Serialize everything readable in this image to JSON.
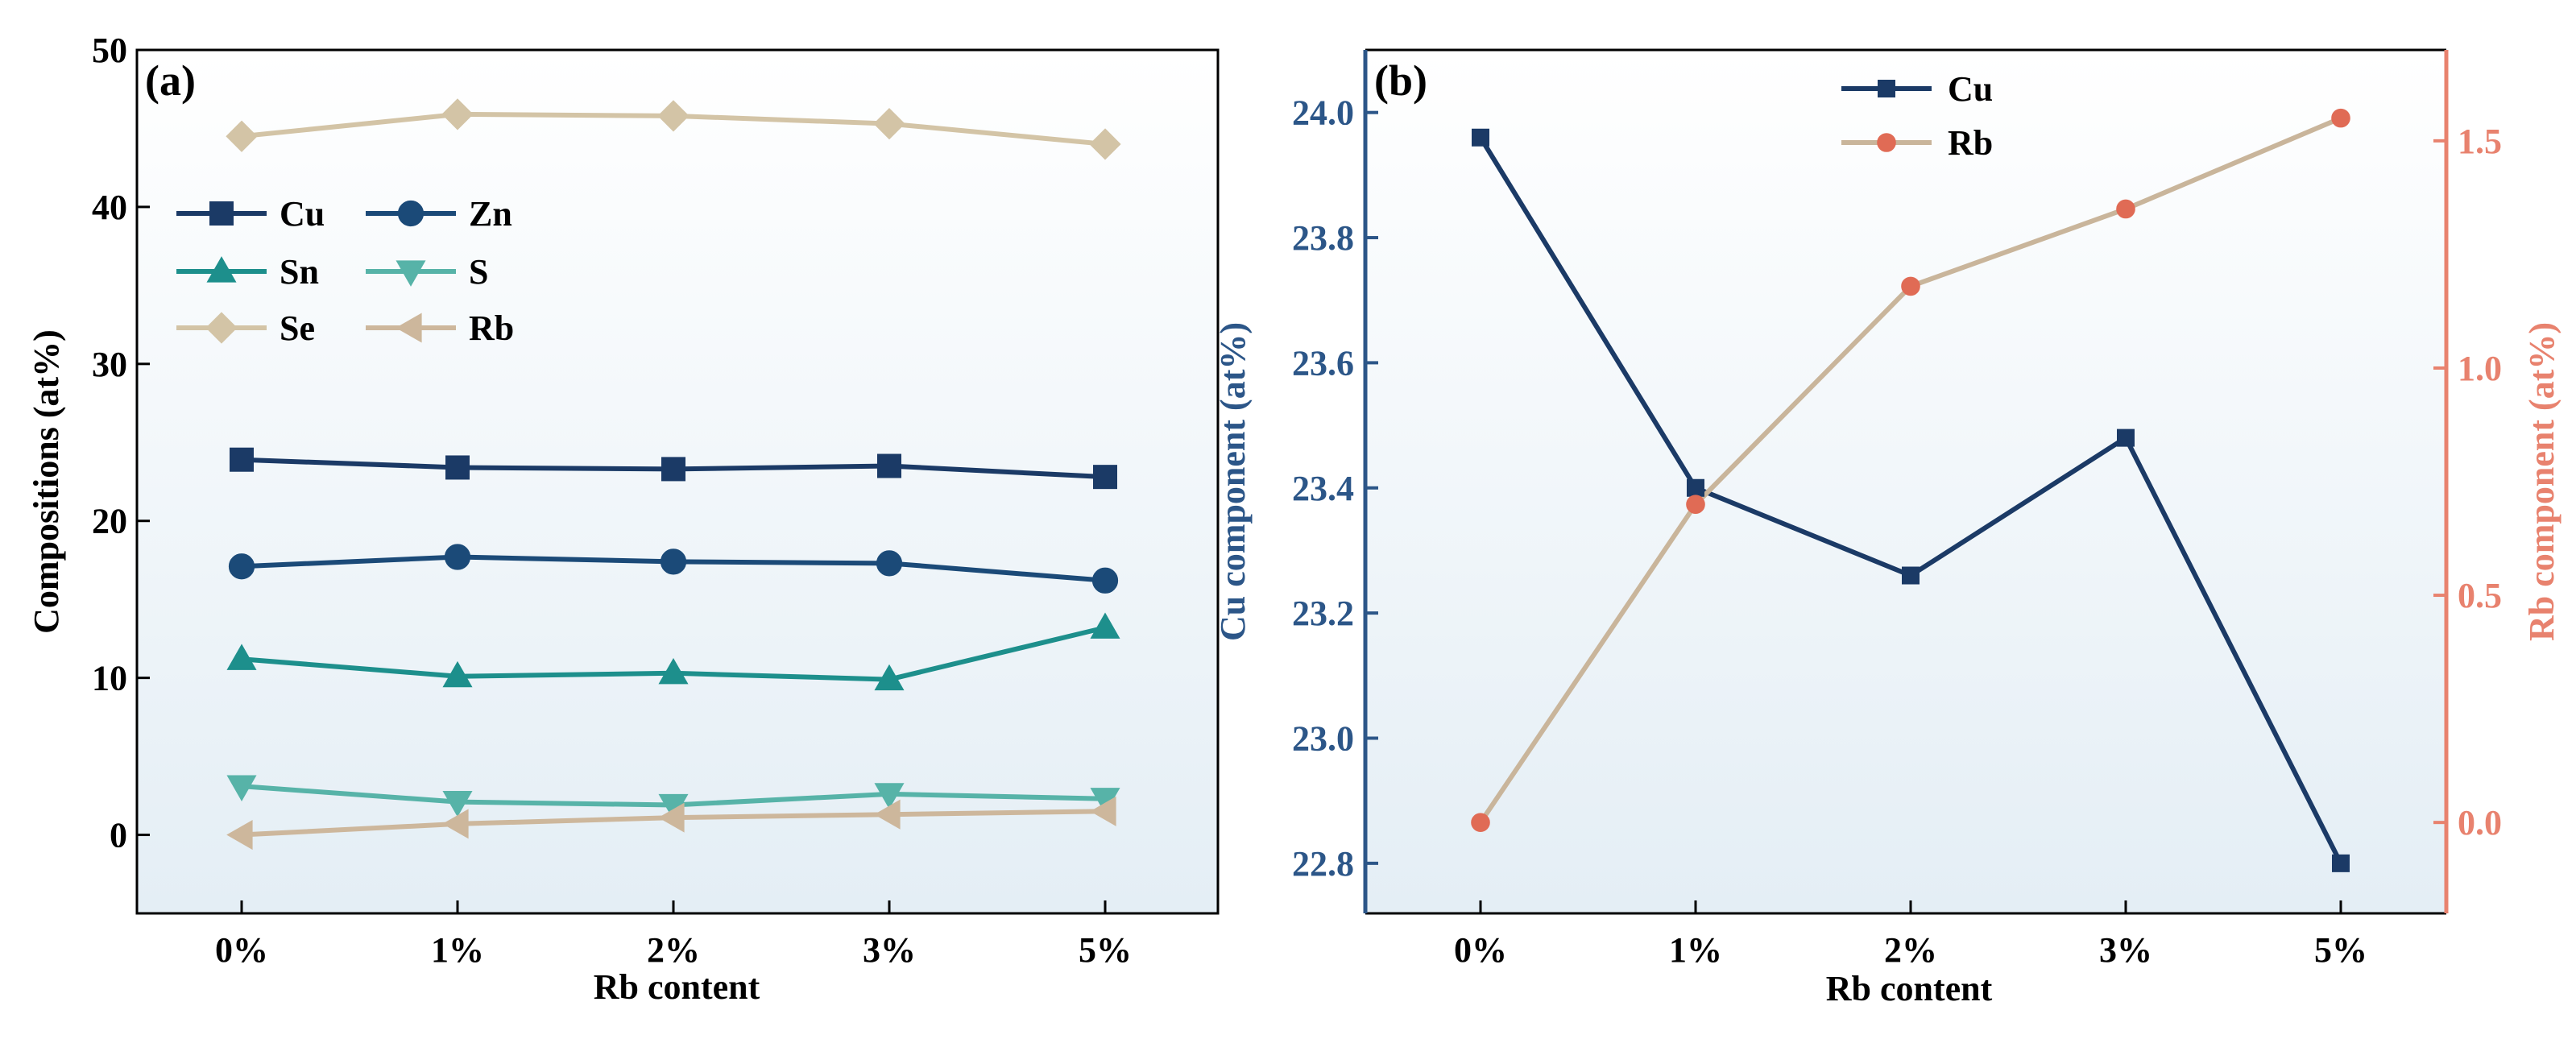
{
  "chart_data": [
    {
      "id": "a",
      "type": "line",
      "panel_label": "(a)",
      "xlabel": "Rb content",
      "ylabel": "Compositions (at%)",
      "categories": [
        "0%",
        "1%",
        "2%",
        "3%",
        "5%"
      ],
      "ylim": [
        -5,
        50
      ],
      "yticks": [
        0,
        10,
        20,
        30,
        40,
        50
      ],
      "legend_position": "center-left",
      "series": [
        {
          "name": "Cu",
          "marker": "square",
          "color": "#1b3a66",
          "values": [
            23.9,
            23.4,
            23.3,
            23.5,
            22.8
          ]
        },
        {
          "name": "Zn",
          "marker": "circle",
          "color": "#1b4a78",
          "values": [
            17.1,
            17.7,
            17.4,
            17.3,
            16.2
          ]
        },
        {
          "name": "Sn",
          "marker": "triangle-up",
          "color": "#1d8f8c",
          "values": [
            11.2,
            10.1,
            10.3,
            9.9,
            13.2
          ]
        },
        {
          "name": "S",
          "marker": "triangle-down",
          "color": "#57b3a8",
          "values": [
            3.1,
            2.1,
            1.9,
            2.6,
            2.3
          ]
        },
        {
          "name": "Se",
          "marker": "diamond",
          "color": "#d3c4a6",
          "values": [
            44.5,
            45.9,
            45.8,
            45.3,
            44.0
          ]
        },
        {
          "name": "Rb",
          "marker": "triangle-left",
          "color": "#cdb79c",
          "values": [
            0.0,
            0.7,
            1.1,
            1.3,
            1.5
          ]
        }
      ]
    },
    {
      "id": "b",
      "type": "line",
      "panel_label": "(b)",
      "xlabel": "Rb content",
      "ylabel_left": "Cu component (at%)",
      "ylabel_right": "Rb component (at%)",
      "categories": [
        "0%",
        "1%",
        "2%",
        "3%",
        "5%"
      ],
      "ylim_left": [
        22.72,
        24.1
      ],
      "yticks_left": [
        22.8,
        23.0,
        23.2,
        23.4,
        23.6,
        23.8,
        24.0
      ],
      "ylim_right": [
        -0.2,
        1.7
      ],
      "yticks_right": [
        0.0,
        0.5,
        1.0,
        1.5
      ],
      "legend_position": "top-center",
      "series": [
        {
          "name": "Cu",
          "axis": "left",
          "marker": "square",
          "color": "#1b3a66",
          "values": [
            23.96,
            23.4,
            23.26,
            23.48,
            22.8
          ]
        },
        {
          "name": "Rb",
          "axis": "right",
          "marker": "circle",
          "line_color": "#c9b59b",
          "marker_color": "#e06b55",
          "values": [
            0.0,
            0.7,
            1.18,
            1.35,
            1.55
          ]
        }
      ],
      "left_axis_color": "#2c5688",
      "right_axis_color": "#e8826e"
    }
  ]
}
